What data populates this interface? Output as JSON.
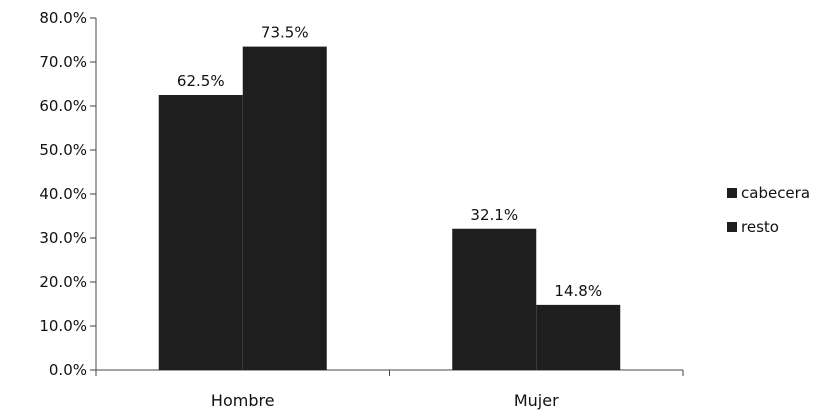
{
  "chart_data": {
    "type": "bar",
    "title": "",
    "xlabel": "",
    "ylabel": "",
    "categories": [
      "Hombre",
      "Mujer"
    ],
    "series": [
      {
        "name": "cabecera",
        "values": [
          62.5,
          32.1
        ],
        "labels": [
          "62.5%",
          "32.1%"
        ]
      },
      {
        "name": "resto",
        "values": [
          73.5,
          14.8
        ],
        "labels": [
          "73.5%",
          "14.8%"
        ]
      }
    ],
    "ylim": [
      0,
      80
    ],
    "yticks": [
      0,
      10,
      20,
      30,
      40,
      50,
      60,
      70,
      80
    ],
    "ytick_labels": [
      "0.0%",
      "10.0%",
      "20.0%",
      "30.0%",
      "40.0%",
      "50.0%",
      "60.0%",
      "70.0%",
      "80.0%"
    ],
    "grid": false,
    "legend_position": "right"
  },
  "colors": {
    "bar": "#1e1e1e",
    "axis": "#444444",
    "text": "#111111"
  }
}
